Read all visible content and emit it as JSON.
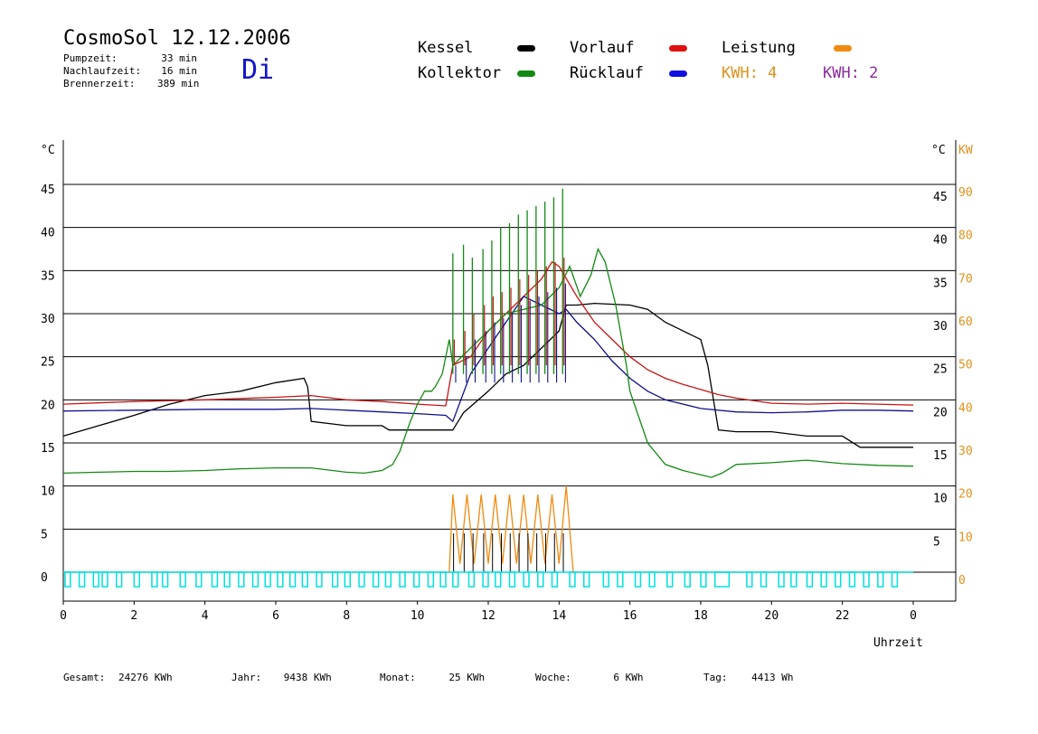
{
  "header": {
    "title": "CosmoSol 12.12.2006",
    "weekday": "Di",
    "stats": [
      {
        "label": "Pumpzeit:",
        "value": "33 min"
      },
      {
        "label": "Nachlaufzeit:",
        "value": "16 min"
      },
      {
        "label": "Brennerzeit:",
        "value": "389 min"
      }
    ]
  },
  "legend": {
    "kessel": {
      "label": "Kessel",
      "color": "#000000"
    },
    "kollektor": {
      "label": "Kollektor",
      "color": "#138a13"
    },
    "vorlauf": {
      "label": "Vorlauf",
      "color": "#e01010"
    },
    "ruecklauf": {
      "label": "Rücklauf",
      "color": "#1010e0"
    },
    "leistung": {
      "label": "Leistung",
      "color": "#f08a10"
    },
    "kwh1": {
      "label": "KWH: 4",
      "color": "#e0901a"
    },
    "kwh2": {
      "label": "KWH: 2",
      "color": "#8a2aa0"
    }
  },
  "chart_data": {
    "type": "line",
    "title": "CosmoSol 12.12.2006",
    "xlabel": "Uhrzeit",
    "ylabel_left": "°C",
    "ylabel_right_temp": "°C",
    "ylabel_right_power": "KW",
    "xlim": [
      0,
      24
    ],
    "x_ticks": [
      "0",
      "2",
      "4",
      "6",
      "8",
      "10",
      "12",
      "14",
      "16",
      "18",
      "20",
      "22",
      "0"
    ],
    "ylim": [
      0,
      50
    ],
    "left_ticks": [
      "0",
      "5",
      "10",
      "15",
      "20",
      "25",
      "30",
      "35",
      "40",
      "45"
    ],
    "right_temp_ticks": [
      "5",
      "10",
      "15",
      "20",
      "25",
      "30",
      "35",
      "40",
      "45"
    ],
    "right_kw_ticks": [
      "0",
      "10",
      "20",
      "30",
      "40",
      "50",
      "60",
      "70",
      "80",
      "90"
    ],
    "grid": "horizontal",
    "colors": {
      "kessel": "#000000",
      "kollektor": "#138a13",
      "vorlauf": "#c81414",
      "ruecklauf": "#10108c",
      "leistung": "#f08a10",
      "pump": "#00e0e0"
    },
    "series": [
      {
        "name": "Kessel",
        "key": "kessel",
        "x": [
          0,
          1,
          2,
          3,
          4,
          5,
          6,
          6.8,
          6.9,
          7,
          8,
          9,
          9.2,
          10,
          11,
          11.3,
          12,
          12.5,
          13,
          13.5,
          14,
          14.2,
          14.5,
          15,
          16,
          16.5,
          17,
          17.5,
          18,
          18.2,
          18.5,
          19,
          20,
          21,
          22,
          22.5,
          23,
          24
        ],
        "y": [
          15.8,
          17,
          18.2,
          19.5,
          20.5,
          21,
          22,
          22.5,
          21.5,
          17.5,
          17,
          17,
          16.5,
          16.5,
          16.5,
          18.5,
          21,
          23,
          24,
          26,
          28,
          31,
          31,
          31.2,
          31,
          30.5,
          29,
          28,
          27,
          24,
          16.5,
          16.3,
          16.3,
          15.8,
          15.8,
          14.5,
          14.5,
          14.5
        ]
      },
      {
        "name": "Vorlauf",
        "key": "vorlauf",
        "x": [
          0,
          2,
          4,
          6,
          7,
          8,
          9,
          10,
          10.8,
          11,
          11.5,
          12,
          12.5,
          13,
          13.5,
          13.8,
          14,
          14.5,
          15,
          15.5,
          16,
          16.5,
          17,
          17.5,
          18,
          18.5,
          19,
          20,
          21,
          22,
          23,
          24
        ],
        "y": [
          19.5,
          19.8,
          20,
          20.3,
          20.5,
          20,
          19.8,
          19.5,
          19.3,
          24,
          25,
          28,
          30,
          32,
          34,
          36,
          35.5,
          32,
          29,
          27,
          25,
          23.5,
          22.5,
          21.8,
          21.2,
          20.6,
          20.2,
          19.6,
          19.5,
          19.6,
          19.5,
          19.4
        ]
      },
      {
        "name": "Rücklauf",
        "key": "ruecklauf",
        "x": [
          0,
          2,
          4,
          6,
          7,
          8,
          9,
          10,
          10.8,
          11,
          11.5,
          12,
          12.5,
          13,
          13.5,
          14,
          14.2,
          14.5,
          15,
          15.5,
          16,
          16.5,
          17,
          18,
          19,
          20,
          21,
          22,
          23,
          24
        ],
        "y": [
          18.7,
          18.8,
          18.9,
          18.9,
          19,
          18.8,
          18.6,
          18.4,
          18.2,
          17.5,
          23,
          26,
          29,
          32,
          31,
          30,
          30.5,
          29,
          27,
          24.5,
          22.5,
          21,
          20,
          19,
          18.6,
          18.5,
          18.6,
          18.8,
          18.8,
          18.7
        ]
      },
      {
        "name": "Kollektor",
        "key": "kollektor",
        "x": [
          0,
          1,
          2,
          3,
          4,
          5,
          6,
          7,
          8,
          8.5,
          9,
          9.3,
          9.5,
          9.8,
          10,
          10.2,
          10.4,
          10.5,
          10.7,
          10.9,
          11,
          11.5,
          12,
          12.5,
          13,
          13.5,
          14,
          14.3,
          14.6,
          14.9,
          15.1,
          15.3,
          15.6,
          15.9,
          16,
          16.5,
          17,
          17.5,
          18,
          18.3,
          18.6,
          19,
          20,
          21,
          22,
          23,
          24
        ],
        "y": [
          11.5,
          11.6,
          11.7,
          11.7,
          11.8,
          12,
          12.1,
          12.1,
          11.6,
          11.5,
          11.8,
          12.5,
          14,
          17.5,
          19.5,
          21,
          21,
          21.5,
          23,
          27,
          24,
          26,
          28,
          30,
          30.5,
          31,
          33,
          35.5,
          32,
          34.5,
          37.5,
          36,
          31,
          24,
          21,
          15,
          12.5,
          11.8,
          11.3,
          11,
          11.5,
          12.5,
          12.7,
          13,
          12.6,
          12.4,
          12.3
        ]
      },
      {
        "name": "Leistung",
        "key": "leistung",
        "x": [
          0,
          10.9,
          11,
          11.2,
          11.4,
          11.6,
          11.8,
          12,
          12.2,
          12.4,
          12.6,
          12.8,
          13,
          13.2,
          13.4,
          13.6,
          13.8,
          14,
          14.2,
          14.4,
          24
        ],
        "y": [
          0,
          0,
          9,
          1,
          9,
          1,
          9,
          1,
          9,
          1,
          9,
          1,
          9,
          1,
          9,
          1,
          9,
          1,
          10,
          0,
          0
        ]
      }
    ],
    "spikes": {
      "kollektor_x": [
        11.0,
        11.3,
        11.55,
        11.85,
        12.1,
        12.35,
        12.6,
        12.85,
        13.1,
        13.35,
        13.6,
        13.85,
        14.1
      ],
      "kollektor_peak": [
        37,
        38,
        36.5,
        37.5,
        38.5,
        40,
        40.5,
        41.5,
        42,
        42.5,
        43,
        43.5,
        44.5
      ],
      "vorlauf_peak": [
        27,
        28,
        30,
        31,
        32,
        32.5,
        33,
        34,
        34.5,
        35,
        35.5,
        36,
        36.5
      ],
      "pump_intervals": [
        [
          0.05,
          0.2
        ],
        [
          0.45,
          0.6
        ],
        [
          0.85,
          1.0
        ],
        [
          1.1,
          1.25
        ],
        [
          1.5,
          1.65
        ],
        [
          2.0,
          2.15
        ],
        [
          2.5,
          2.65
        ],
        [
          2.8,
          2.95
        ],
        [
          3.3,
          3.45
        ],
        [
          3.75,
          3.9
        ],
        [
          4.2,
          4.35
        ],
        [
          4.55,
          4.7
        ],
        [
          4.95,
          5.1
        ],
        [
          5.35,
          5.5
        ],
        [
          5.7,
          5.85
        ],
        [
          6.05,
          6.2
        ],
        [
          6.4,
          6.55
        ],
        [
          6.75,
          6.9
        ],
        [
          7.15,
          7.3
        ],
        [
          7.6,
          7.75
        ],
        [
          7.95,
          8.1
        ],
        [
          8.35,
          8.5
        ],
        [
          8.75,
          8.9
        ],
        [
          9.1,
          9.25
        ],
        [
          9.5,
          9.65
        ],
        [
          9.9,
          10.05
        ],
        [
          10.3,
          10.45
        ],
        [
          10.65,
          10.8
        ],
        [
          11.0,
          11.15
        ],
        [
          11.45,
          11.6
        ],
        [
          11.85,
          12.0
        ],
        [
          12.2,
          12.35
        ],
        [
          12.6,
          12.75
        ],
        [
          13.0,
          13.15
        ],
        [
          13.4,
          13.55
        ],
        [
          13.8,
          13.95
        ],
        [
          14.3,
          14.45
        ],
        [
          14.7,
          14.85
        ],
        [
          15.25,
          15.4
        ],
        [
          15.65,
          15.8
        ],
        [
          16.15,
          16.3
        ],
        [
          16.55,
          16.7
        ],
        [
          17.05,
          17.2
        ],
        [
          17.55,
          17.7
        ],
        [
          18.0,
          18.15
        ],
        [
          18.4,
          18.8
        ],
        [
          19.3,
          19.45
        ],
        [
          19.7,
          19.85
        ],
        [
          20.2,
          20.35
        ],
        [
          20.55,
          20.7
        ],
        [
          21.0,
          21.15
        ],
        [
          21.4,
          21.55
        ],
        [
          21.8,
          21.95
        ],
        [
          22.2,
          22.35
        ],
        [
          22.6,
          22.75
        ],
        [
          23.0,
          23.15
        ],
        [
          23.4,
          23.55
        ]
      ]
    }
  },
  "footer": [
    {
      "label": "Gesamt:",
      "value": "24276 KWh"
    },
    {
      "label": "Jahr:",
      "value": "9438 KWh"
    },
    {
      "label": "Monat:",
      "value": "25 KWh"
    },
    {
      "label": "Woche:",
      "value": "6 KWh"
    },
    {
      "label": "Tag:",
      "value": "4413 Wh"
    }
  ]
}
